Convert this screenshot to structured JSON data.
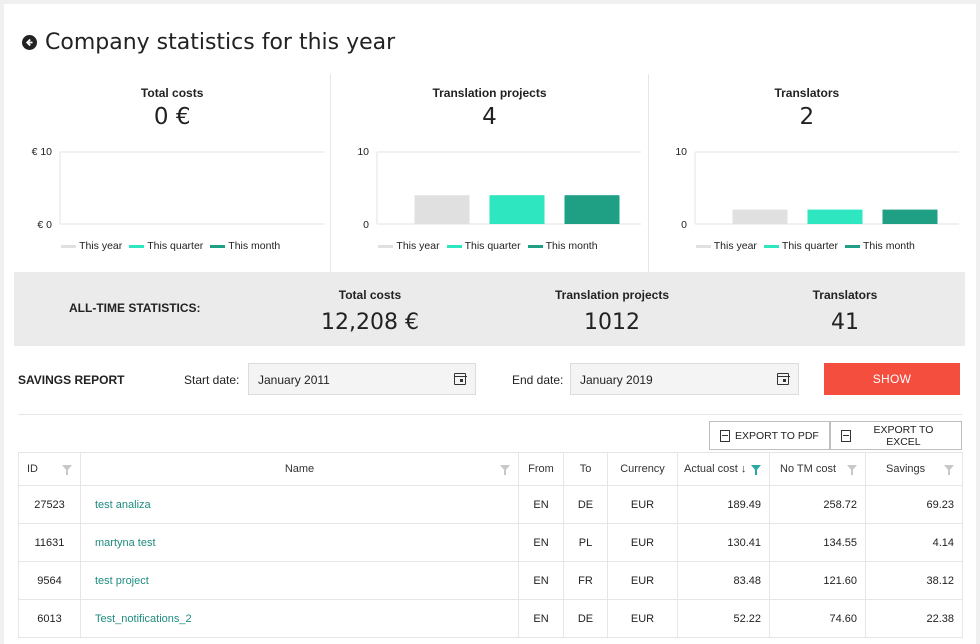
{
  "header": {
    "title": "Company statistics for this year"
  },
  "cards": [
    {
      "title": "Total costs",
      "value": "0 €",
      "y_top_label": "€ 10",
      "y_bottom_label": "€ 0",
      "bars": [
        0,
        0,
        0
      ]
    },
    {
      "title": "Translation projects",
      "value": "4",
      "y_top_label": "10",
      "y_bottom_label": "0",
      "bars": [
        4,
        4,
        4
      ]
    },
    {
      "title": "Translators",
      "value": "2",
      "y_top_label": "10",
      "y_bottom_label": "0",
      "bars": [
        2,
        2,
        2
      ]
    }
  ],
  "legend": [
    {
      "label": "This year",
      "color": "#e0e0e0"
    },
    {
      "label": "This quarter",
      "color": "#2ee6c0"
    },
    {
      "label": "This month",
      "color": "#1fa085"
    }
  ],
  "alltime": {
    "label": "ALL-TIME STATISTICS:",
    "stats": [
      {
        "label": "Total costs",
        "value": "12,208 €"
      },
      {
        "label": "Translation projects",
        "value": "1012"
      },
      {
        "label": "Translators",
        "value": "41"
      }
    ]
  },
  "savings": {
    "title": "SAVINGS REPORT",
    "start_label": "Start date:",
    "start_value": "January 2011",
    "end_label": "End date:",
    "end_value": "January 2019",
    "show_label": "SHOW"
  },
  "export": {
    "pdf_label": "EXPORT TO PDF",
    "excel_label": "EXPORT TO EXCEL"
  },
  "table": {
    "columns": [
      "ID",
      "Name",
      "From",
      "To",
      "Currency",
      "Actual cost ↓",
      "No TM cost",
      "Savings"
    ],
    "rows": [
      {
        "id": "27523",
        "name": "test analiza",
        "from": "EN",
        "to": "DE",
        "currency": "EUR",
        "actual": "189.49",
        "notm": "258.72",
        "savings": "69.23"
      },
      {
        "id": "11631",
        "name": "martyna test",
        "from": "EN",
        "to": "PL",
        "currency": "EUR",
        "actual": "130.41",
        "notm": "134.55",
        "savings": "4.14"
      },
      {
        "id": "9564",
        "name": "test project",
        "from": "EN",
        "to": "FR",
        "currency": "EUR",
        "actual": "83.48",
        "notm": "121.60",
        "savings": "38.12"
      },
      {
        "id": "6013",
        "name": "Test_notifications_2",
        "from": "EN",
        "to": "DE",
        "currency": "EUR",
        "actual": "52.22",
        "notm": "74.60",
        "savings": "22.38"
      }
    ]
  }
}
